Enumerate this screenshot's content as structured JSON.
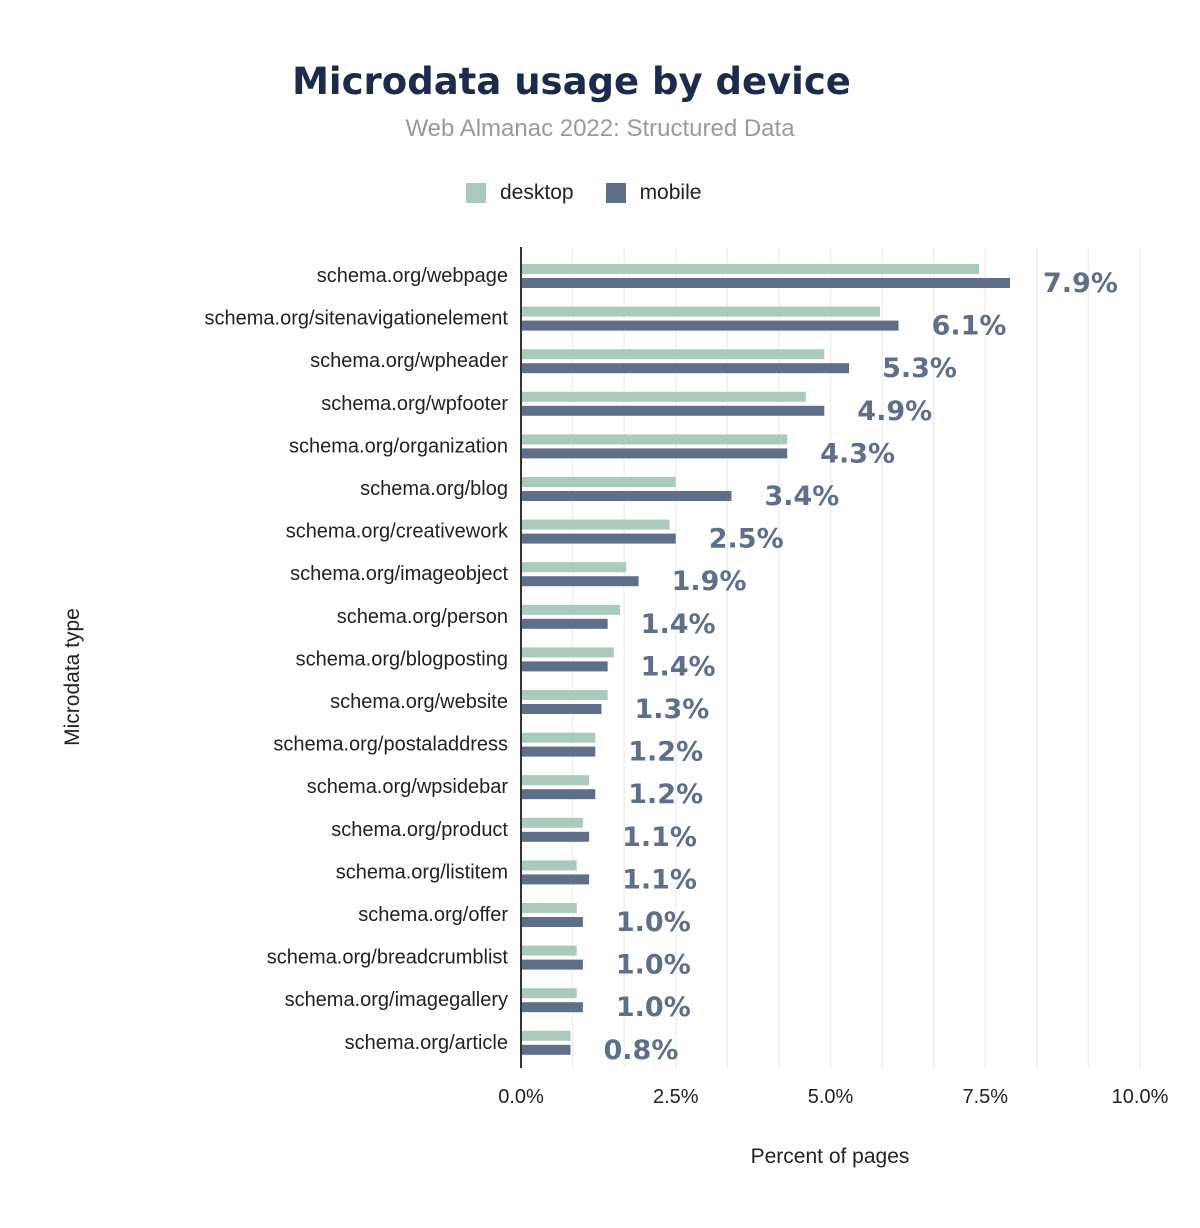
{
  "chart_data": {
    "type": "bar",
    "orientation": "horizontal",
    "title": "Microdata usage by device",
    "subtitle": "Web Almanac 2022: Structured Data",
    "xlabel": "Percent of pages",
    "ylabel": "Microdata type",
    "xlim": [
      0,
      10
    ],
    "xticks": [
      "0.0%",
      "2.5%",
      "5.0%",
      "7.5%",
      "10.0%"
    ],
    "grid": true,
    "legend_position": "top",
    "colors": {
      "desktop": "#a8cbbc",
      "mobile": "#5f6f8a",
      "label": "#5f6f8a"
    },
    "categories": [
      "schema.org/webpage",
      "schema.org/sitenavigationelement",
      "schema.org/wpheader",
      "schema.org/wpfooter",
      "schema.org/organization",
      "schema.org/blog",
      "schema.org/creativework",
      "schema.org/imageobject",
      "schema.org/person",
      "schema.org/blogposting",
      "schema.org/website",
      "schema.org/postaladdress",
      "schema.org/wpsidebar",
      "schema.org/product",
      "schema.org/listitem",
      "schema.org/offer",
      "schema.org/breadcrumblist",
      "schema.org/imagegallery",
      "schema.org/article"
    ],
    "series": [
      {
        "name": "desktop",
        "values": [
          7.4,
          5.8,
          4.9,
          4.6,
          4.3,
          2.5,
          2.4,
          1.7,
          1.6,
          1.5,
          1.4,
          1.2,
          1.1,
          1.0,
          0.9,
          0.9,
          0.9,
          0.9,
          0.8
        ]
      },
      {
        "name": "mobile",
        "values": [
          7.9,
          6.1,
          5.3,
          4.9,
          4.3,
          3.4,
          2.5,
          1.9,
          1.4,
          1.4,
          1.3,
          1.2,
          1.2,
          1.1,
          1.1,
          1.0,
          1.0,
          1.0,
          0.8
        ]
      }
    ],
    "data_labels": [
      "7.9%",
      "6.1%",
      "5.3%",
      "4.9%",
      "4.3%",
      "3.4%",
      "2.5%",
      "1.9%",
      "1.4%",
      "1.4%",
      "1.3%",
      "1.2%",
      "1.2%",
      "1.1%",
      "1.1%",
      "1.0%",
      "1.0%",
      "1.0%",
      "0.8%"
    ]
  }
}
